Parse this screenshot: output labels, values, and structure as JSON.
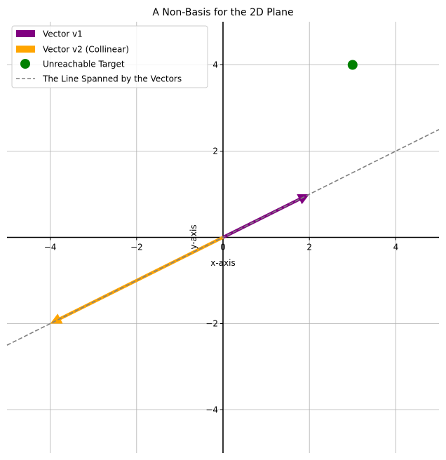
{
  "chart_data": {
    "type": "line",
    "title": "A Non-Basis for the 2D Plane",
    "xlabel": "x-axis",
    "ylabel": "y-axis",
    "xlim": [
      -5,
      5
    ],
    "ylim": [
      -5,
      5
    ],
    "xticks": [
      -4,
      -2,
      0,
      2,
      4
    ],
    "yticks": [
      -4,
      -2,
      0,
      2,
      4
    ],
    "xtick_labels": [
      "−4",
      "−2",
      "0",
      "2",
      "4"
    ],
    "ytick_labels": [
      "−4",
      "−2",
      "0",
      "2",
      "4"
    ],
    "grid": true,
    "legend_position": "upper-left",
    "series": [
      {
        "name": "Vector v1",
        "kind": "arrow",
        "from": [
          0,
          0
        ],
        "to": [
          2,
          1
        ],
        "color": "#800080"
      },
      {
        "name": "Vector v2 (Collinear)",
        "kind": "arrow",
        "from": [
          0,
          0
        ],
        "to": [
          -4,
          -2
        ],
        "color": "#FFA500"
      },
      {
        "name": "Unreachable Target",
        "kind": "point",
        "x": 3,
        "y": 4,
        "color": "#008000"
      },
      {
        "name": "The Line Spanned by the Vectors",
        "kind": "dashed-line",
        "from": [
          -5,
          -2.5
        ],
        "to": [
          5,
          2.5
        ],
        "color": "#808080"
      }
    ]
  }
}
